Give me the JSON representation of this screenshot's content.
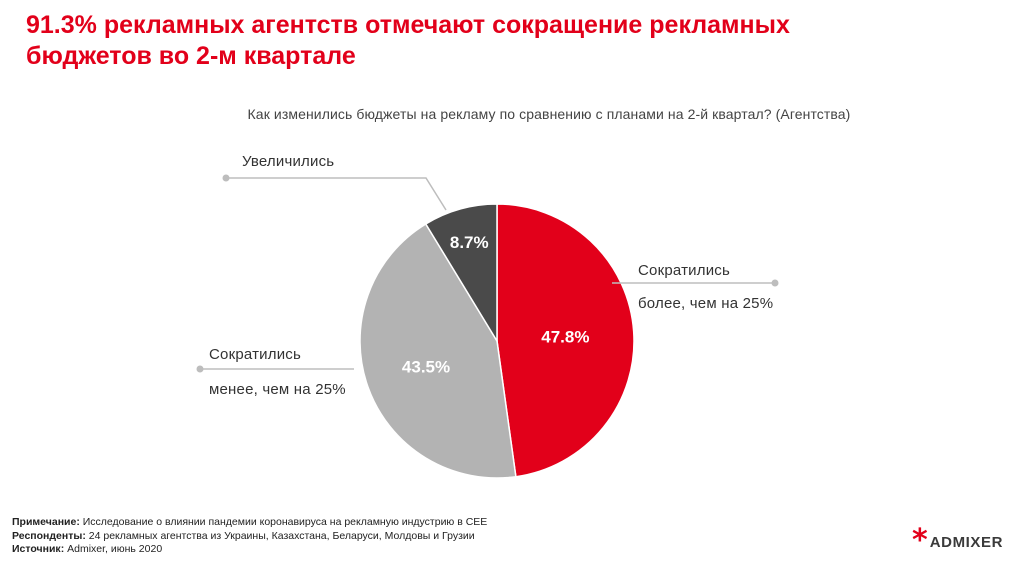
{
  "header": {
    "title": "91.3% рекламных агентств отмечают сокращение рекламных бюджетов во 2-м квартале"
  },
  "chart_data": {
    "type": "pie",
    "title": "Как изменились бюджеты на рекламу по сравнению с планами на 2-й квартал? (Агентства)",
    "slices": [
      {
        "label_line1": "Сократились",
        "label_line2": "более, чем на 25%",
        "value": 47.8,
        "display": "47.8%",
        "color": "#e2001a"
      },
      {
        "label_line1": "Сократились",
        "label_line2": "менее, чем на 25%",
        "value": 43.5,
        "display": "43.5%",
        "color": "#b3b3b3"
      },
      {
        "label_line1": "Увеличились",
        "label_line2": "",
        "value": 8.7,
        "display": "8.7%",
        "color": "#4a4a4a"
      }
    ]
  },
  "footnote": {
    "note_label": "Примечание:",
    "note_text": " Исследование о влиянии пандемии коронавируса на рекламную индустрию в CEE",
    "respondents_label": "Респонденты:",
    "respondents_text": " 24 рекламных агентства из Украины, Казахстана, Беларуси, Молдовы и Грузии",
    "source_label": "Источник:",
    "source_text": " Admixer, июнь 2020"
  },
  "logo": {
    "star": "*",
    "text": "ADMIXER",
    "color": "#e2001a"
  }
}
